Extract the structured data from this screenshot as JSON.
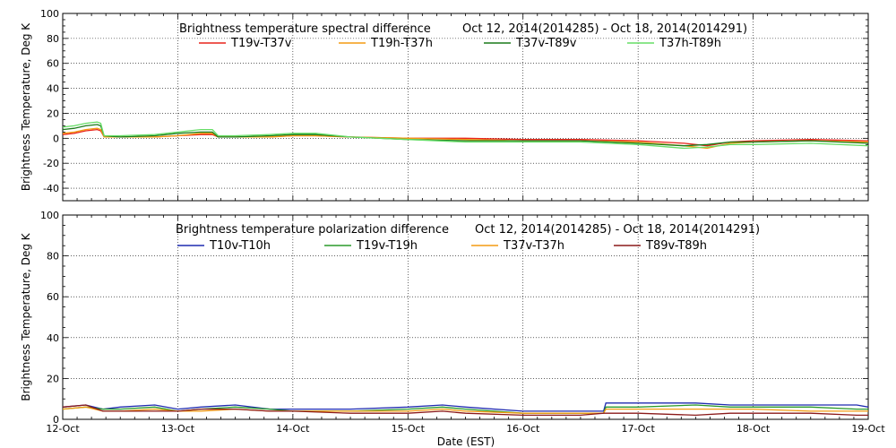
{
  "chart_data": [
    {
      "type": "line",
      "title": "Brightness temperature spectral difference",
      "date_range": "Oct 12, 2014(2014285) - Oct 18, 2014(2014291)",
      "ylabel": "Brightness Temperature, Deg K",
      "xlabel": "",
      "x_domain": [
        "12-Oct",
        "19-Oct"
      ],
      "ylim": [
        -50,
        100
      ],
      "yticks": [
        -40,
        -20,
        0,
        20,
        40,
        60,
        80,
        100
      ],
      "grid": true,
      "legend_position": "top",
      "series": [
        {
          "name": "T19v-T37v",
          "color": "#e8241c",
          "x": [
            0,
            0.1,
            0.2,
            0.3,
            0.33,
            0.36,
            0.5,
            0.8,
            1.0,
            1.2,
            1.3,
            1.35,
            1.5,
            1.8,
            2.0,
            2.2,
            2.5,
            3.0,
            3.5,
            4.0,
            4.5,
            5.0,
            5.4,
            5.6,
            5.8,
            6.0,
            6.5,
            7.0
          ],
          "y": [
            3,
            4,
            6,
            7,
            6,
            1,
            1,
            1,
            2,
            3,
            3,
            1,
            1,
            1,
            2,
            2,
            1,
            0,
            0,
            -1,
            -1,
            -2,
            -4,
            -6,
            -3,
            -2,
            -1,
            -2
          ]
        },
        {
          "name": "T19h-T37h",
          "color": "#f39c12",
          "x": [
            0,
            0.1,
            0.2,
            0.3,
            0.33,
            0.36,
            0.5,
            0.8,
            1.0,
            1.2,
            1.3,
            1.35,
            1.5,
            1.8,
            2.0,
            2.2,
            2.5,
            3.0,
            3.5,
            4.0,
            4.5,
            5.0,
            5.4,
            5.6,
            5.8,
            6.0,
            6.5,
            7.0
          ],
          "y": [
            4,
            5,
            7,
            8,
            7,
            1,
            1,
            1,
            2,
            4,
            4,
            1,
            1,
            1,
            2,
            2,
            1,
            0,
            -1,
            -2,
            -2,
            -3,
            -6,
            -8,
            -4,
            -3,
            -2,
            -3
          ]
        },
        {
          "name": "T37v-T89v",
          "color": "#1a7a1a",
          "x": [
            0,
            0.1,
            0.2,
            0.3,
            0.33,
            0.36,
            0.5,
            0.8,
            1.0,
            1.2,
            1.3,
            1.35,
            1.5,
            1.8,
            2.0,
            2.2,
            2.5,
            3.0,
            3.5,
            4.0,
            4.5,
            5.0,
            5.4,
            5.6,
            5.8,
            6.0,
            6.5,
            7.0
          ],
          "y": [
            7,
            8,
            10,
            11,
            10,
            2,
            1,
            2,
            4,
            5,
            5,
            1,
            1,
            2,
            3,
            3,
            1,
            -1,
            -2,
            -2,
            -2,
            -4,
            -6,
            -5,
            -3,
            -3,
            -2,
            -4
          ]
        },
        {
          "name": "T37h-T89h",
          "color": "#66dd66",
          "x": [
            0,
            0.1,
            0.2,
            0.3,
            0.33,
            0.36,
            0.5,
            0.8,
            1.0,
            1.2,
            1.3,
            1.35,
            1.5,
            1.8,
            2.0,
            2.2,
            2.5,
            3.0,
            3.5,
            4.0,
            4.5,
            5.0,
            5.4,
            5.6,
            5.8,
            6.0,
            6.5,
            7.0
          ],
          "y": [
            9,
            10,
            12,
            13,
            12,
            2,
            2,
            3,
            5,
            7,
            7,
            2,
            2,
            3,
            4,
            4,
            1,
            -1,
            -3,
            -3,
            -3,
            -5,
            -8,
            -7,
            -5,
            -5,
            -4,
            -6
          ]
        }
      ]
    },
    {
      "type": "line",
      "title": "Brightness temperature polarization difference",
      "date_range": "Oct 12, 2014(2014285) - Oct 18, 2014(2014291)",
      "ylabel": "Brightness Temperature, Deg K",
      "xlabel": "Date (EST)",
      "x_domain": [
        "12-Oct",
        "19-Oct"
      ],
      "ylim": [
        0,
        100
      ],
      "yticks": [
        0,
        20,
        40,
        60,
        80,
        100
      ],
      "xticks": [
        "12-Oct",
        "13-Oct",
        "14-Oct",
        "15-Oct",
        "16-Oct",
        "17-Oct",
        "18-Oct",
        "19-Oct"
      ],
      "grid": true,
      "legend_position": "top",
      "series": [
        {
          "name": "T10v-T10h",
          "color": "#1f2bb0",
          "x": [
            0,
            0.2,
            0.35,
            0.5,
            0.8,
            1.0,
            1.2,
            1.5,
            1.8,
            2.0,
            2.5,
            3.0,
            3.3,
            3.5,
            4.0,
            4.5,
            4.7,
            4.72,
            5.0,
            5.5,
            5.8,
            6.0,
            6.5,
            6.9,
            7.0
          ],
          "y": [
            6,
            7,
            5,
            6,
            7,
            5,
            6,
            7,
            5,
            5,
            5,
            6,
            7,
            6,
            4,
            4,
            4,
            8,
            8,
            8,
            7,
            7,
            7,
            7,
            6
          ]
        },
        {
          "name": "T19v-T19h",
          "color": "#2a9a2a",
          "x": [
            0,
            0.2,
            0.35,
            0.5,
            0.8,
            1.0,
            1.2,
            1.5,
            1.8,
            2.0,
            2.5,
            3.0,
            3.3,
            3.5,
            4.0,
            4.5,
            4.7,
            4.72,
            5.0,
            5.5,
            5.8,
            6.0,
            6.5,
            6.9,
            7.0
          ],
          "y": [
            5,
            6,
            5,
            5,
            6,
            4,
            5,
            6,
            5,
            4,
            4,
            5,
            6,
            5,
            3,
            3,
            3,
            6,
            6,
            7,
            6,
            6,
            6,
            5,
            5
          ]
        },
        {
          "name": "T37v-T37h",
          "color": "#f39c12",
          "x": [
            0,
            0.2,
            0.35,
            0.5,
            0.8,
            1.0,
            1.2,
            1.5,
            1.8,
            2.0,
            2.5,
            3.0,
            3.3,
            3.5,
            4.0,
            4.5,
            4.7,
            4.72,
            5.0,
            5.5,
            5.8,
            6.0,
            6.5,
            6.9,
            7.0
          ],
          "y": [
            5,
            6,
            4,
            4,
            5,
            4,
            4,
            5,
            4,
            4,
            4,
            4,
            5,
            4,
            3,
            3,
            3,
            5,
            5,
            5,
            5,
            5,
            4,
            4,
            4
          ]
        },
        {
          "name": "T89v-T89h",
          "color": "#8b1a1a",
          "x": [
            0,
            0.2,
            0.35,
            0.5,
            0.8,
            1.0,
            1.2,
            1.5,
            1.8,
            2.0,
            2.5,
            3.0,
            3.3,
            3.5,
            4.0,
            4.5,
            4.7,
            4.72,
            5.0,
            5.5,
            5.8,
            6.0,
            6.5,
            6.9,
            7.0
          ],
          "y": [
            6,
            7,
            4,
            4,
            4,
            4,
            5,
            5,
            4,
            4,
            3,
            3,
            4,
            3,
            2,
            2,
            3,
            3,
            3,
            2,
            3,
            3,
            3,
            2,
            2
          ]
        }
      ]
    }
  ]
}
